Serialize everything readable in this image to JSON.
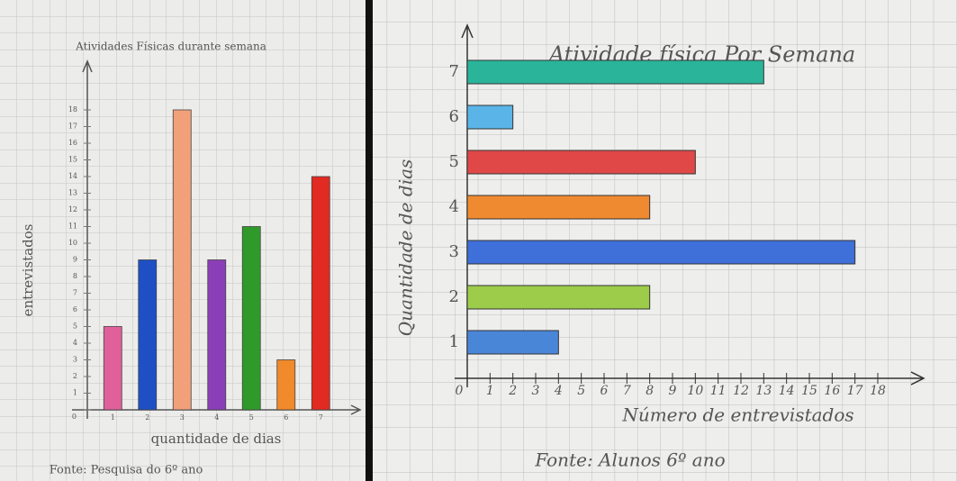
{
  "chart_data": [
    {
      "type": "bar",
      "title": "Atividades Físicas durante semana",
      "xlabel": "quantidade de dias",
      "ylabel": "entrevistados",
      "source": "Fonte: Pesquisa do 6º ano",
      "categories": [
        "1",
        "2",
        "3",
        "4",
        "5",
        "6",
        "7"
      ],
      "values": [
        5,
        9,
        18,
        9,
        11,
        3,
        14
      ],
      "colors": [
        "#e0609a",
        "#1f4fc4",
        "#f2a07a",
        "#8a3fb8",
        "#2f9a2a",
        "#f08a2a",
        "#e02a22"
      ],
      "ylim": [
        0,
        18
      ],
      "yticks": [
        0,
        1,
        2,
        3,
        4,
        5,
        6,
        7,
        8,
        9,
        10,
        11,
        12,
        13,
        14,
        15,
        16,
        17,
        18
      ]
    },
    {
      "type": "barh",
      "title": "Atividade física Por Semana",
      "xlabel": "Número de entrevistados",
      "ylabel": "Quantidade de dias",
      "source": "Fonte: Alunos 6º ano",
      "categories": [
        "1",
        "2",
        "3",
        "4",
        "5",
        "6",
        "7"
      ],
      "values": [
        4,
        8,
        17,
        8,
        10,
        2,
        13
      ],
      "colors": [
        "#4a86d8",
        "#9ccc4a",
        "#3f6fd8",
        "#f08a30",
        "#e04848",
        "#5ab4e8",
        "#2ab49a"
      ],
      "xlim": [
        0,
        18
      ],
      "xticks": [
        0,
        1,
        2,
        3,
        4,
        5,
        6,
        7,
        8,
        9,
        10,
        11,
        12,
        13,
        14,
        15,
        16,
        17,
        18
      ]
    }
  ]
}
